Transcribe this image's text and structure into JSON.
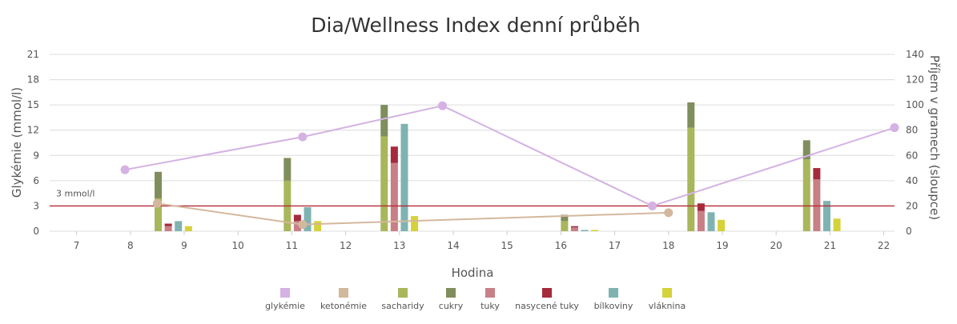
{
  "chart_data": {
    "type": "bar",
    "title": "Dia/Wellness Index denní průběh",
    "xlabel": "Hodina",
    "ylabel_left": "Glykémie (mmol/l)",
    "ylabel_right": "Příjem v gramech (sloupce)",
    "xlim": [
      6.5,
      22.2
    ],
    "x_ticks": [
      7,
      8,
      9,
      10,
      11,
      12,
      13,
      14,
      15,
      16,
      17,
      18,
      19,
      20,
      21,
      22
    ],
    "ylim_left": [
      0,
      21
    ],
    "y_ticks_left": [
      0,
      3,
      6,
      9,
      12,
      15,
      18,
      21
    ],
    "ylim_right": [
      0,
      140
    ],
    "y_ticks_right": [
      0,
      20,
      40,
      60,
      80,
      100,
      120,
      140
    ],
    "grid": true,
    "legend_position": "bottom",
    "threshold": {
      "value": 3,
      "label": "3 mmol/l",
      "color": "#b52a35"
    },
    "line_series": [
      {
        "name": "glykémie",
        "color": "#d4b2e2",
        "axis": "left",
        "points": [
          {
            "x": 7.9,
            "y": 7.3
          },
          {
            "x": 11.2,
            "y": 11.2
          },
          {
            "x": 13.8,
            "y": 14.9
          },
          {
            "x": 17.7,
            "y": 3.0
          },
          {
            "x": 22.2,
            "y": 12.3
          }
        ]
      },
      {
        "name": "ketonémie",
        "color": "#d4b89d",
        "axis": "left",
        "points": [
          {
            "x": 8.5,
            "y": 3.3
          },
          {
            "x": 11.2,
            "y": 0.8
          },
          {
            "x": 18.0,
            "y": 2.2
          }
        ]
      }
    ],
    "bar_series": [
      {
        "name": "sacharidy",
        "color": "#a9b65b"
      },
      {
        "name": "cukry",
        "color": "#7f8e5c"
      },
      {
        "name": "tuky",
        "color": "#c87f86"
      },
      {
        "name": "nasycené tuky",
        "color": "#a52a3d"
      },
      {
        "name": "bílkoviny",
        "color": "#7fb3b2"
      },
      {
        "name": "vláknina",
        "color": "#d5d23a"
      }
    ],
    "bar_groups": [
      {
        "x": 8.45,
        "sacharidy": 26,
        "cukry": 21,
        "tuky": 4,
        "nasycene_tuky": 2,
        "bilkoviny": 8,
        "vlaknina": 4
      },
      {
        "x": 10.85,
        "sacharidy": 40,
        "cukry": 18,
        "tuky": 8,
        "nasycene_tuky": 5,
        "bilkoviny": 19,
        "vlaknina": 8
      },
      {
        "x": 12.65,
        "sacharidy": 75,
        "cukry": 25,
        "tuky": 54,
        "nasycene_tuky": 13,
        "bilkoviny": 85,
        "vlaknina": 12
      },
      {
        "x": 16.0,
        "sacharidy": 8,
        "cukry": 5,
        "tuky": 3,
        "nasycene_tuky": 1,
        "bilkoviny": 1,
        "vlaknina": 1
      },
      {
        "x": 18.35,
        "sacharidy": 82,
        "cukry": 20,
        "tuky": 16,
        "nasycene_tuky": 6,
        "bilkoviny": 15,
        "vlaknina": 9
      },
      {
        "x": 20.5,
        "sacharidy": 57,
        "cukry": 15,
        "tuky": 41,
        "nasycene_tuky": 9,
        "bilkoviny": 24,
        "vlaknina": 10
      }
    ]
  }
}
